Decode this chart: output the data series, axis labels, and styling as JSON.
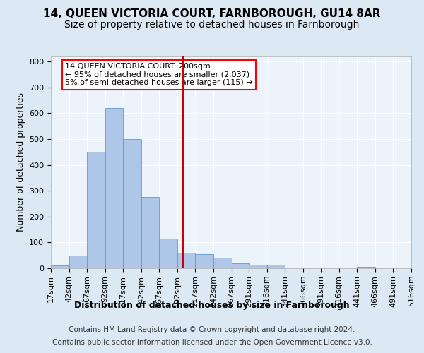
{
  "title1": "14, QUEEN VICTORIA COURT, FARNBOROUGH, GU14 8AR",
  "title2": "Size of property relative to detached houses in Farnborough",
  "xlabel": "Distribution of detached houses by size in Farnborough",
  "ylabel": "Number of detached properties",
  "footnote1": "Contains HM Land Registry data © Crown copyright and database right 2024.",
  "footnote2": "Contains public sector information licensed under the Open Government Licence v3.0.",
  "annotation_line1": "14 QUEEN VICTORIA COURT: 200sqm",
  "annotation_line2": "← 95% of detached houses are smaller (2,037)",
  "annotation_line3": "5% of semi-detached houses are larger (115) →",
  "bar_color": "#aec6e8",
  "bar_edge_color": "#5b9bd5",
  "ref_line_color": "#cc0000",
  "ref_line_x": 200,
  "bin_edges": [
    17,
    42,
    67,
    92,
    117,
    142,
    167,
    192,
    217,
    242,
    267,
    291,
    316,
    341,
    366,
    391,
    416,
    441,
    466,
    491,
    516
  ],
  "bar_heights": [
    10,
    50,
    450,
    620,
    500,
    275,
    115,
    60,
    55,
    40,
    20,
    15,
    15,
    0,
    0,
    0,
    0,
    5,
    0,
    0
  ],
  "ylim": [
    0,
    820
  ],
  "yticks": [
    0,
    100,
    200,
    300,
    400,
    500,
    600,
    700,
    800
  ],
  "background_color": "#dce9f5",
  "plot_bg_color": "#edf3fb",
  "grid_color": "#ffffff",
  "title1_fontsize": 11,
  "title2_fontsize": 10,
  "xlabel_fontsize": 9,
  "ylabel_fontsize": 9,
  "tick_fontsize": 8,
  "footnote_fontsize": 7.5
}
